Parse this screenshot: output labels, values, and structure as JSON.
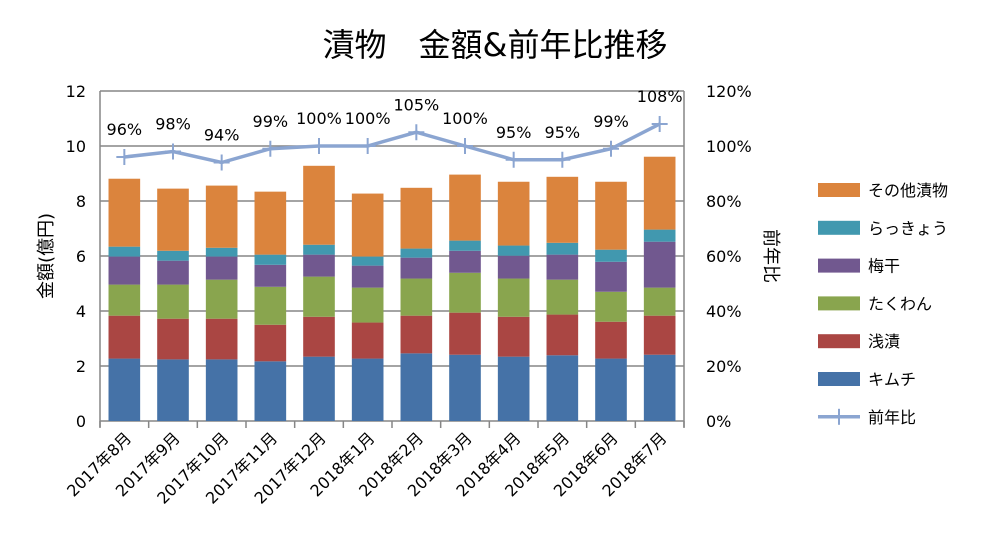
{
  "chart_data": {
    "type": "bar",
    "stacked": true,
    "title": "漬物　金額&前年比推移",
    "ylabel": "金額(億円)",
    "y2label": "前年比",
    "ylim": [
      0,
      12
    ],
    "y2lim": [
      0,
      120
    ],
    "yticks": [
      "0",
      "2",
      "4",
      "6",
      "8",
      "10",
      "12"
    ],
    "y2ticks": [
      "0%",
      "20%",
      "40%",
      "60%",
      "80%",
      "100%",
      "120%"
    ],
    "grid": true,
    "legend_position": "right",
    "categories": [
      "2017年8月",
      "2017年9月",
      "2017年10月",
      "2017年11月",
      "2017年12月",
      "2018年1月",
      "2018年2月",
      "2018年3月",
      "2018年4月",
      "2018年5月",
      "2018年6月",
      "2018年7月"
    ],
    "series": [
      {
        "name": "キムチ",
        "color": "#4572a7",
        "values": [
          2.27,
          2.24,
          2.24,
          2.17,
          2.34,
          2.27,
          2.46,
          2.41,
          2.34,
          2.39,
          2.27,
          2.41
        ]
      },
      {
        "name": "浅漬",
        "color": "#aa4643",
        "values": [
          1.56,
          1.48,
          1.48,
          1.33,
          1.45,
          1.31,
          1.37,
          1.53,
          1.45,
          1.48,
          1.34,
          1.42
        ]
      },
      {
        "name": "たくわん",
        "color": "#89a54e",
        "values": [
          1.13,
          1.24,
          1.42,
          1.38,
          1.46,
          1.27,
          1.35,
          1.45,
          1.39,
          1.27,
          1.09,
          1.02
        ]
      },
      {
        "name": "梅干",
        "color": "#71588f",
        "values": [
          1.02,
          0.87,
          0.84,
          0.8,
          0.8,
          0.8,
          0.76,
          0.8,
          0.83,
          0.91,
          1.09,
          1.67
        ]
      },
      {
        "name": "らっきょう",
        "color": "#4198af",
        "values": [
          0.36,
          0.36,
          0.32,
          0.37,
          0.36,
          0.33,
          0.33,
          0.37,
          0.37,
          0.43,
          0.44,
          0.44
        ]
      },
      {
        "name": "その他漬物",
        "color": "#db843d",
        "values": [
          2.47,
          2.26,
          2.26,
          2.29,
          2.87,
          2.29,
          2.21,
          2.4,
          2.32,
          2.4,
          2.47,
          2.65
        ]
      }
    ],
    "line_series": {
      "name": "前年比",
      "color": "#8ba5d1",
      "axis": "right",
      "values": [
        96,
        98,
        94,
        99,
        100,
        100,
        105,
        100,
        95,
        95,
        99,
        108
      ],
      "labels": [
        "96%",
        "98%",
        "94%",
        "99%",
        "100%",
        "100%",
        "105%",
        "100%",
        "95%",
        "95%",
        "99%",
        "108%"
      ]
    }
  }
}
